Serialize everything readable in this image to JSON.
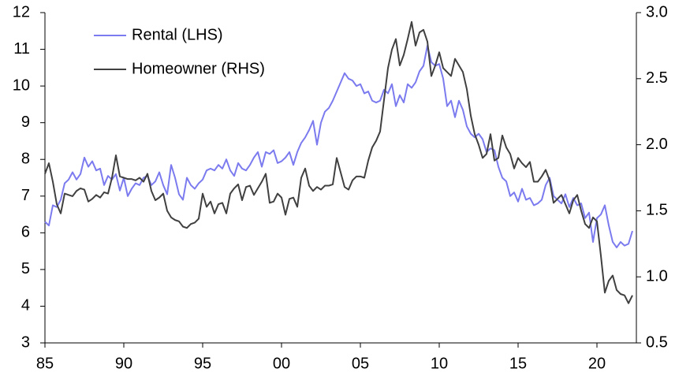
{
  "chart_data": {
    "type": "line",
    "x": [
      1985,
      1985.25,
      1985.5,
      1985.75,
      1986,
      1986.25,
      1986.5,
      1986.75,
      1987,
      1987.25,
      1987.5,
      1987.75,
      1988,
      1988.25,
      1988.5,
      1988.75,
      1989,
      1989.25,
      1989.5,
      1989.75,
      1990,
      1990.25,
      1990.5,
      1990.75,
      1991,
      1991.25,
      1991.5,
      1991.75,
      1992,
      1992.25,
      1992.5,
      1992.75,
      1993,
      1993.25,
      1993.5,
      1993.75,
      1994,
      1994.25,
      1994.5,
      1994.75,
      1995,
      1995.25,
      1995.5,
      1995.75,
      1996,
      1996.25,
      1996.5,
      1996.75,
      1997,
      1997.25,
      1997.5,
      1997.75,
      1998,
      1998.25,
      1998.5,
      1998.75,
      1999,
      1999.25,
      1999.5,
      1999.75,
      2000,
      2000.25,
      2000.5,
      2000.75,
      2001,
      2001.25,
      2001.5,
      2001.75,
      2002,
      2002.25,
      2002.5,
      2002.75,
      2003,
      2003.25,
      2003.5,
      2003.75,
      2004,
      2004.25,
      2004.5,
      2004.75,
      2005,
      2005.25,
      2005.5,
      2005.75,
      2006,
      2006.25,
      2006.5,
      2006.75,
      2007,
      2007.25,
      2007.5,
      2007.75,
      2008,
      2008.25,
      2008.5,
      2008.75,
      2009,
      2009.25,
      2009.5,
      2009.75,
      2010,
      2010.25,
      2010.5,
      2010.75,
      2011,
      2011.25,
      2011.5,
      2011.75,
      2012,
      2012.25,
      2012.5,
      2012.75,
      2013,
      2013.25,
      2013.5,
      2013.75,
      2014,
      2014.25,
      2014.5,
      2014.75,
      2015,
      2015.25,
      2015.5,
      2015.75,
      2016,
      2016.25,
      2016.5,
      2016.75,
      2017,
      2017.25,
      2017.5,
      2017.75,
      2018,
      2018.25,
      2018.5,
      2018.75,
      2019,
      2019.25,
      2019.5,
      2019.75,
      2020,
      2020.25,
      2020.5,
      2020.75,
      2021,
      2021.25,
      2021.5,
      2021.75,
      2022,
      2022.25
    ],
    "series": [
      {
        "name": "Rental (LHS)",
        "color": "#7b7bef",
        "axis": "y",
        "values": [
          6.3,
          6.2,
          6.75,
          6.7,
          6.9,
          7.35,
          7.45,
          7.65,
          7.45,
          7.6,
          8.05,
          7.8,
          7.95,
          7.7,
          7.75,
          7.3,
          7.55,
          7.45,
          7.6,
          7.15,
          7.5,
          7.0,
          7.2,
          7.35,
          7.3,
          7.5,
          7.55,
          7.3,
          7.4,
          7.65,
          7.3,
          7.05,
          7.85,
          7.5,
          7.05,
          6.9,
          7.5,
          7.3,
          7.2,
          7.35,
          7.45,
          7.7,
          7.75,
          7.7,
          7.85,
          7.75,
          8.0,
          7.7,
          7.55,
          7.9,
          7.75,
          7.7,
          7.85,
          8.05,
          8.2,
          7.8,
          8.2,
          8.15,
          8.25,
          7.9,
          7.95,
          8.05,
          8.2,
          7.85,
          8.2,
          8.45,
          8.6,
          8.8,
          9.05,
          8.4,
          9.0,
          9.3,
          9.4,
          9.6,
          9.85,
          10.1,
          10.35,
          10.2,
          10.15,
          10.0,
          10.05,
          9.8,
          9.85,
          9.6,
          9.55,
          9.6,
          9.9,
          9.8,
          10.05,
          9.45,
          9.75,
          9.55,
          10.05,
          9.95,
          10.1,
          10.4,
          10.55,
          11.1,
          10.65,
          10.55,
          10.6,
          10.2,
          9.45,
          9.6,
          9.15,
          9.6,
          9.35,
          8.9,
          8.7,
          8.6,
          8.7,
          8.55,
          8.2,
          8.3,
          8.25,
          7.8,
          7.5,
          7.4,
          7.0,
          7.1,
          6.85,
          7.2,
          6.9,
          6.95,
          6.75,
          6.8,
          6.9,
          7.3,
          7.5,
          7.0,
          6.9,
          6.8,
          7.05,
          6.7,
          6.95,
          6.75,
          6.8,
          6.4,
          6.55,
          5.75,
          6.4,
          6.5,
          6.75,
          6.2,
          5.75,
          5.6,
          5.75,
          5.65,
          5.7,
          6.05
        ]
      },
      {
        "name": "Homeowner (RHS)",
        "color": "#404040",
        "axis": "y2",
        "values": [
          1.78,
          1.86,
          1.72,
          1.55,
          1.48,
          1.63,
          1.62,
          1.61,
          1.65,
          1.67,
          1.66,
          1.57,
          1.59,
          1.62,
          1.6,
          1.64,
          1.63,
          1.75,
          1.92,
          1.76,
          1.75,
          1.74,
          1.74,
          1.73,
          1.75,
          1.72,
          1.78,
          1.65,
          1.58,
          1.6,
          1.63,
          1.5,
          1.45,
          1.43,
          1.42,
          1.38,
          1.37,
          1.4,
          1.41,
          1.44,
          1.63,
          1.53,
          1.57,
          1.48,
          1.55,
          1.56,
          1.48,
          1.63,
          1.67,
          1.7,
          1.58,
          1.68,
          1.69,
          1.62,
          1.67,
          1.72,
          1.78,
          1.56,
          1.57,
          1.63,
          1.6,
          1.47,
          1.59,
          1.6,
          1.53,
          1.75,
          1.82,
          1.69,
          1.65,
          1.68,
          1.66,
          1.69,
          1.69,
          1.7,
          1.9,
          1.79,
          1.68,
          1.66,
          1.73,
          1.76,
          1.76,
          1.75,
          1.88,
          1.98,
          2.03,
          2.1,
          2.34,
          2.58,
          2.72,
          2.8,
          2.6,
          2.68,
          2.8,
          2.93,
          2.75,
          2.85,
          2.87,
          2.78,
          2.52,
          2.6,
          2.7,
          2.58,
          2.55,
          2.52,
          2.65,
          2.6,
          2.55,
          2.42,
          2.22,
          2.08,
          2.0,
          1.9,
          1.93,
          2.08,
          1.88,
          1.9,
          2.07,
          1.98,
          1.93,
          1.82,
          1.9,
          1.86,
          1.83,
          1.87,
          1.72,
          1.72,
          1.76,
          1.81,
          1.73,
          1.56,
          1.59,
          1.62,
          1.55,
          1.48,
          1.58,
          1.62,
          1.5,
          1.4,
          1.37,
          1.45,
          1.42,
          1.16,
          0.88,
          0.97,
          1.01,
          0.9,
          0.87,
          0.86,
          0.8,
          0.86
        ]
      }
    ],
    "xlim": [
      1985,
      2022.5
    ],
    "xticks": [
      {
        "value": 1985,
        "label": "85"
      },
      {
        "value": 1990,
        "label": "90"
      },
      {
        "value": 1995,
        "label": "95"
      },
      {
        "value": 2000,
        "label": "00"
      },
      {
        "value": 2005,
        "label": "05"
      },
      {
        "value": 2010,
        "label": "10"
      },
      {
        "value": 2015,
        "label": "15"
      },
      {
        "value": 2020,
        "label": "20"
      }
    ],
    "ylim": [
      3,
      12
    ],
    "yticks": [
      3,
      4,
      5,
      6,
      7,
      8,
      9,
      10,
      11,
      12
    ],
    "y2lim": [
      0.5,
      3.0
    ],
    "y2ticks": [
      {
        "value": 0.5,
        "label": "0.5"
      },
      {
        "value": 1.0,
        "label": "1.0"
      },
      {
        "value": 1.5,
        "label": "1.5"
      },
      {
        "value": 2.0,
        "label": "2.0"
      },
      {
        "value": 2.5,
        "label": "2.5"
      },
      {
        "value": 3.0,
        "label": "3.0"
      }
    ],
    "legend": "upper-left"
  }
}
